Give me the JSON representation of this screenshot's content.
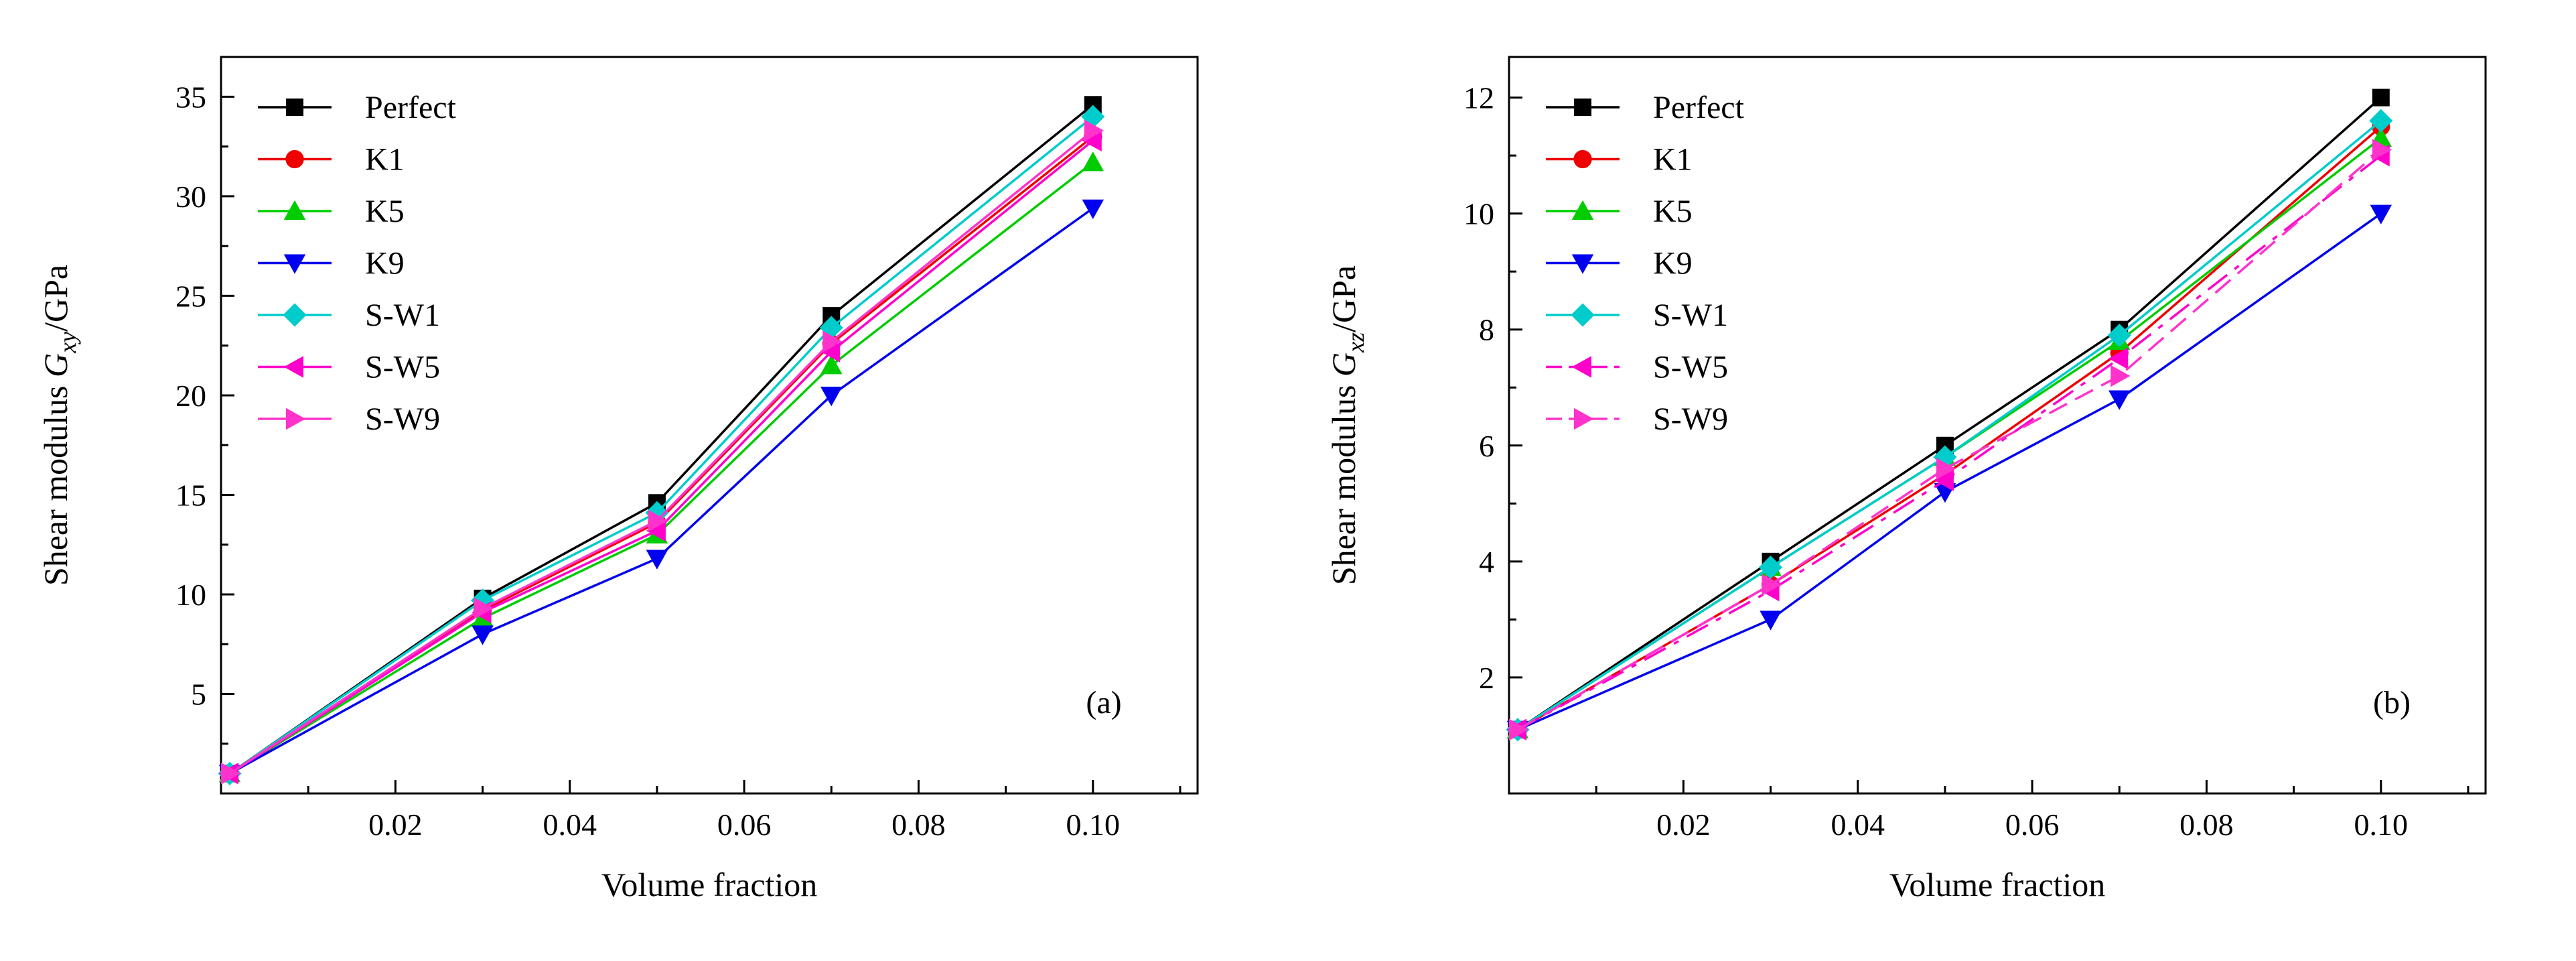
{
  "figure": {
    "background": "#ffffff",
    "axis_color": "#000000"
  },
  "chart_data": [
    {
      "type": "line",
      "panel_label": "(a)",
      "title": "",
      "xlabel": "Volume fraction",
      "ylabel": "Shear modulus Gxy/GPa",
      "ylabel_parts": {
        "prefix": "Shear modulus ",
        "symbol": "G",
        "subscript": "xy",
        "suffix": "/GPa"
      },
      "x": [
        0.001,
        0.03,
        0.05,
        0.07,
        0.1
      ],
      "xlim": [
        0,
        0.112
      ],
      "ylim": [
        0,
        37
      ],
      "xticks": [
        0.02,
        0.04,
        0.06,
        0.08,
        0.1
      ],
      "xtick_labels": [
        "0.02",
        "0.04",
        "0.06",
        "0.08",
        "0.10"
      ],
      "yticks": [
        5,
        10,
        15,
        20,
        25,
        30,
        35
      ],
      "ytick_labels": [
        "5",
        "10",
        "15",
        "20",
        "25",
        "30",
        "35"
      ],
      "x_minor_step": 0.01,
      "y_minor_step": 2.5,
      "grid": false,
      "legend_position": "top-left",
      "series": [
        {
          "name": "Perfect",
          "color": "#000000",
          "marker": "square",
          "dash": "",
          "values": [
            1.0,
            9.8,
            14.6,
            24.0,
            34.6
          ]
        },
        {
          "name": "K1",
          "color": "#ee0000",
          "marker": "circle",
          "dash": "",
          "values": [
            1.0,
            9.2,
            13.6,
            22.6,
            33.0
          ]
        },
        {
          "name": "K5",
          "color": "#00cc00",
          "marker": "triangle-up",
          "dash": "",
          "values": [
            1.0,
            8.8,
            13.0,
            21.5,
            31.7
          ]
        },
        {
          "name": "K9",
          "color": "#0000ee",
          "marker": "triangle-down",
          "dash": "",
          "values": [
            1.0,
            8.0,
            11.8,
            20.0,
            29.4
          ]
        },
        {
          "name": "S-W1",
          "color": "#00cccc",
          "marker": "diamond",
          "dash": "",
          "values": [
            1.0,
            9.7,
            14.1,
            23.4,
            34.0
          ]
        },
        {
          "name": "S-W5",
          "color": "#ff00cc",
          "marker": "triangle-left",
          "dash": "",
          "values": [
            1.0,
            9.1,
            13.2,
            22.2,
            32.8
          ]
        },
        {
          "name": "S-W9",
          "color": "#ff33cc",
          "marker": "triangle-right",
          "dash": "",
          "values": [
            1.0,
            9.3,
            13.7,
            22.7,
            33.3
          ]
        }
      ]
    },
    {
      "type": "line",
      "panel_label": "(b)",
      "title": "",
      "xlabel": "Volume fraction",
      "ylabel": "Shear modulus Gxz/GPa",
      "ylabel_parts": {
        "prefix": "Shear modulus ",
        "symbol": "G",
        "subscript": "xz",
        "suffix": "/GPa"
      },
      "x": [
        0.001,
        0.03,
        0.05,
        0.07,
        0.1
      ],
      "xlim": [
        0,
        0.112
      ],
      "ylim": [
        0,
        12.7
      ],
      "xticks": [
        0.02,
        0.04,
        0.06,
        0.08,
        0.1
      ],
      "xtick_labels": [
        "0.02",
        "0.04",
        "0.06",
        "0.08",
        "0.10"
      ],
      "yticks": [
        2,
        4,
        6,
        8,
        10,
        12
      ],
      "ytick_labels": [
        "2",
        "4",
        "6",
        "8",
        "10",
        "12"
      ],
      "x_minor_step": 0.01,
      "y_minor_step": 1,
      "grid": false,
      "legend_position": "top-left",
      "series": [
        {
          "name": "Perfect",
          "color": "#000000",
          "marker": "square",
          "dash": "",
          "values": [
            1.1,
            4.0,
            6.0,
            8.0,
            12.0
          ]
        },
        {
          "name": "K1",
          "color": "#ee0000",
          "marker": "circle",
          "dash": "",
          "values": [
            1.1,
            3.6,
            5.5,
            7.6,
            11.5
          ]
        },
        {
          "name": "K5",
          "color": "#00cc00",
          "marker": "triangle-up",
          "dash": "",
          "values": [
            1.1,
            3.9,
            5.8,
            7.8,
            11.3
          ]
        },
        {
          "name": "K9",
          "color": "#0000ee",
          "marker": "triangle-down",
          "dash": "",
          "values": [
            1.1,
            3.0,
            5.2,
            6.8,
            10.0
          ]
        },
        {
          "name": "S-W1",
          "color": "#00cccc",
          "marker": "diamond",
          "dash": "",
          "values": [
            1.1,
            3.9,
            5.8,
            7.9,
            11.6
          ]
        },
        {
          "name": "S-W5",
          "color": "#ff00cc",
          "marker": "triangle-left",
          "dash": "36 14 8 14",
          "values": [
            1.1,
            3.5,
            5.4,
            7.5,
            11.0
          ]
        },
        {
          "name": "S-W9",
          "color": "#ff33cc",
          "marker": "triangle-right",
          "dash": "30 14",
          "values": [
            1.1,
            3.6,
            5.6,
            7.2,
            11.1
          ]
        }
      ]
    }
  ]
}
